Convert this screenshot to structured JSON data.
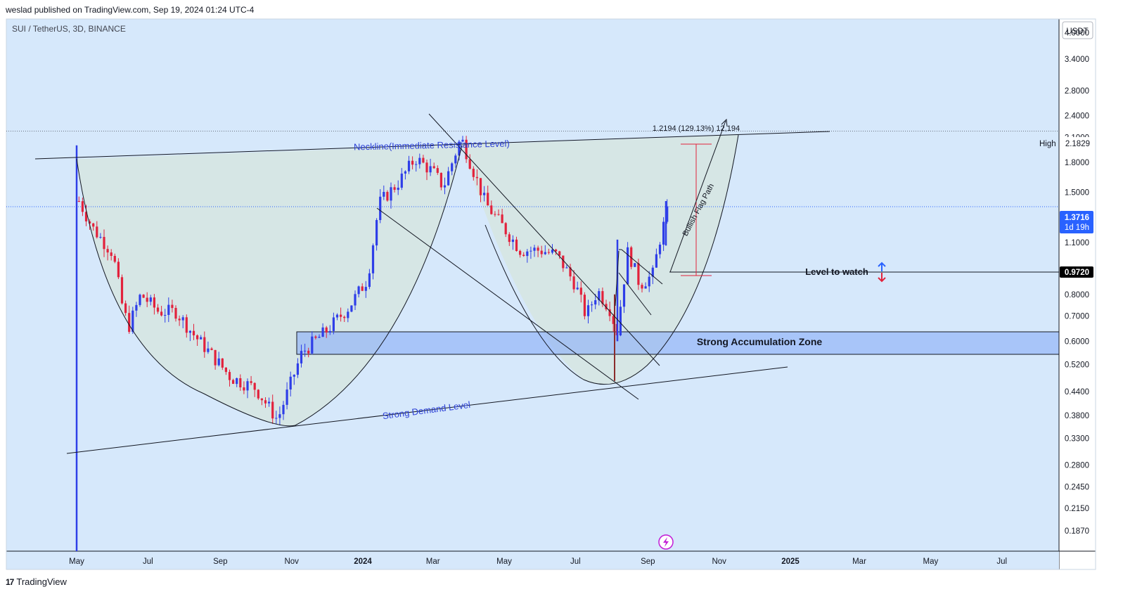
{
  "header": {
    "publish_line": "weslad published on TradingView.com, Sep 19, 2024 01:24 UTC-4"
  },
  "footer": {
    "brand": "TradingView",
    "logo_text": "17"
  },
  "chart_data": {
    "type": "candlestick",
    "symbol_line": "SUI / TetherUS, 3D, BINANCE",
    "y_scale": "log",
    "y_currency": "USDT",
    "ylim": [
      0.165,
      4.35
    ],
    "y_ticks": [
      "4.0000",
      "3.4000",
      "2.8000",
      "2.4000",
      "2.1000",
      "1.8000",
      "1.5000",
      "1.1000",
      "0.8000",
      "0.7000",
      "0.6000",
      "0.5200",
      "0.4400",
      "0.3800",
      "0.3300",
      "0.2800",
      "0.2450",
      "0.2150",
      "0.1870"
    ],
    "x_ticks": [
      {
        "label": "May",
        "bold": false
      },
      {
        "label": "Jul",
        "bold": false
      },
      {
        "label": "Sep",
        "bold": false
      },
      {
        "label": "Nov",
        "bold": false
      },
      {
        "label": "2024",
        "bold": true
      },
      {
        "label": "Mar",
        "bold": false
      },
      {
        "label": "May",
        "bold": false
      },
      {
        "label": "Jul",
        "bold": false
      },
      {
        "label": "Sep",
        "bold": false
      },
      {
        "label": "Nov",
        "bold": false
      },
      {
        "label": "2025",
        "bold": true
      },
      {
        "label": "Mar",
        "bold": false
      },
      {
        "label": "May",
        "bold": false
      },
      {
        "label": "Jul",
        "bold": false
      }
    ],
    "price_labels": {
      "high_label": "High",
      "high_value": "2.1829",
      "last_value": "1.3716",
      "last_countdown": "1d 19h",
      "watch_value": "0.9720"
    },
    "annotations": {
      "neckline": "Neckline(Immediate Resistance Level)",
      "demand": "Strong Demand Level",
      "accumulation": "Strong Accumulation Zone",
      "level_to_watch": "Level to watch",
      "bullish_flag": "Bullish Flag Path",
      "measure": "1.2194 (129.13%) 12,194"
    },
    "price_path": [
      [
        "2023-05-03",
        1.42
      ],
      [
        "2023-05-15",
        1.2
      ],
      [
        "2023-06-01",
        1.03
      ],
      [
        "2023-06-10",
        0.72
      ],
      [
        "2023-06-15",
        0.66
      ],
      [
        "2023-06-25",
        0.8
      ],
      [
        "2023-07-10",
        0.72
      ],
      [
        "2023-07-25",
        0.72
      ],
      [
        "2023-08-10",
        0.62
      ],
      [
        "2023-08-25",
        0.55
      ],
      [
        "2023-09-10",
        0.48
      ],
      [
        "2023-10-01",
        0.45
      ],
      [
        "2023-10-20",
        0.37
      ],
      [
        "2023-11-01",
        0.47
      ],
      [
        "2023-11-10",
        0.56
      ],
      [
        "2023-12-01",
        0.64
      ],
      [
        "2023-12-20",
        0.74
      ],
      [
        "2024-01-05",
        0.88
      ],
      [
        "2024-01-15",
        1.4
      ],
      [
        "2024-02-01",
        1.6
      ],
      [
        "2024-02-15",
        1.85
      ],
      [
        "2024-03-01",
        1.7
      ],
      [
        "2024-03-10",
        1.55
      ],
      [
        "2024-03-25",
        2.1
      ],
      [
        "2024-04-05",
        1.7
      ],
      [
        "2024-04-15",
        1.4
      ],
      [
        "2024-05-01",
        1.2
      ],
      [
        "2024-05-15",
        1.05
      ],
      [
        "2024-06-01",
        1.05
      ],
      [
        "2024-06-15",
        1.02
      ],
      [
        "2024-07-01",
        0.85
      ],
      [
        "2024-07-10",
        0.7
      ],
      [
        "2024-07-20",
        0.82
      ],
      [
        "2024-08-01",
        0.72
      ],
      [
        "2024-08-05",
        0.62
      ],
      [
        "2024-08-15",
        1.05
      ],
      [
        "2024-08-25",
        0.85
      ],
      [
        "2024-09-05",
        0.9
      ],
      [
        "2024-09-12",
        1.15
      ],
      [
        "2024-09-19",
        1.37
      ]
    ]
  }
}
